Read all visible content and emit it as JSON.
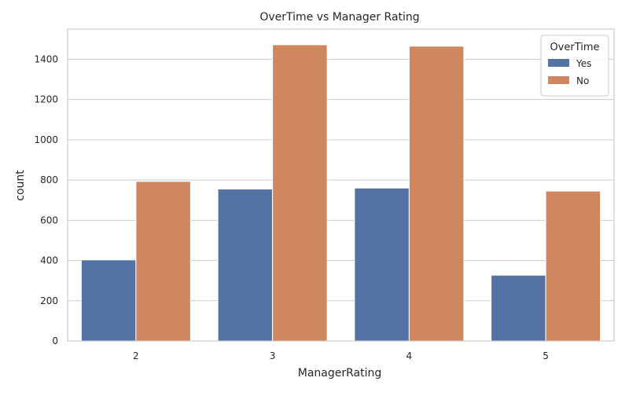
{
  "chart_data": {
    "type": "bar",
    "title": "OverTime vs Manager Rating",
    "xlabel": "ManagerRating",
    "ylabel": "count",
    "categories": [
      "2",
      "3",
      "4",
      "5"
    ],
    "series": [
      {
        "name": "Yes",
        "color": "#5572a4",
        "values": [
          403,
          755,
          760,
          327
        ]
      },
      {
        "name": "No",
        "color": "#cf8760",
        "values": [
          793,
          1472,
          1465,
          745
        ]
      }
    ],
    "ylim": [
      0,
      1550
    ],
    "yticks": [
      0,
      200,
      400,
      600,
      800,
      1000,
      1200,
      1400
    ],
    "grid": "horizontal",
    "legend": {
      "title": "OverTime",
      "placement": "top-right"
    }
  }
}
